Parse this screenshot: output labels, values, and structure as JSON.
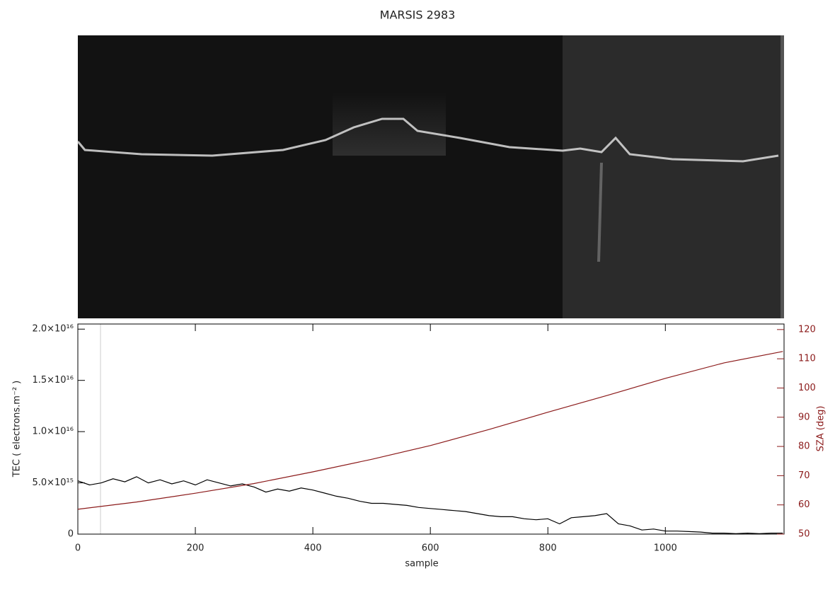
{
  "chart_data": {
    "type": "line",
    "title": "MARSIS 2983",
    "xlabel": "sample",
    "ylabel": "TEC ( electrons.m⁻² )",
    "y2label": "SZA (deg)",
    "xlim": [
      0,
      1202
    ],
    "xticks": [
      0,
      200,
      400,
      600,
      800,
      1000
    ],
    "ylim": [
      0,
      2.05e+16
    ],
    "yticks": [
      {
        "value": 0,
        "label": "0"
      },
      {
        "value": 5000000000000000.0,
        "label": "5.0×10¹⁵"
      },
      {
        "value": 1e+16,
        "label": "1.0×10¹⁶"
      },
      {
        "value": 1.5e+16,
        "label": "1.5×10¹⁶"
      },
      {
        "value": 2e+16,
        "label": "2.0×10¹⁶"
      }
    ],
    "y2lim": [
      50,
      121.9
    ],
    "y2ticks": [
      50,
      60,
      70,
      80,
      90,
      100,
      110,
      120
    ],
    "y2color": "#8b1a1a",
    "series": [
      {
        "color": "#000000",
        "x": [
          0,
          20,
          40,
          60,
          80,
          100,
          120,
          140,
          160,
          180,
          200,
          220,
          240,
          260,
          280,
          300,
          320,
          340,
          360,
          380,
          400,
          420,
          440,
          460,
          480,
          500,
          520,
          540,
          560,
          580,
          600,
          620,
          640,
          660,
          680,
          700,
          720,
          740,
          760,
          780,
          800,
          820,
          840,
          860,
          880,
          900,
          920,
          940,
          960,
          980,
          1000,
          1020,
          1040,
          1060,
          1080,
          1100,
          1120,
          1140,
          1160,
          1180,
          1200
        ],
        "values": [
          5200000000000000.0,
          4800000000000000.0,
          5000000000000000.0,
          5400000000000000.0,
          5100000000000000.0,
          5600000000000000.0,
          5000000000000000.0,
          5300000000000000.0,
          4900000000000000.0,
          5200000000000000.0,
          4800000000000000.0,
          5300000000000000.0,
          5000000000000000.0,
          4700000000000000.0,
          4900000000000000.0,
          4600000000000000.0,
          4100000000000000.0,
          4400000000000000.0,
          4200000000000000.0,
          4500000000000000.0,
          4300000000000000.0,
          4000000000000000.0,
          3700000000000000.0,
          3500000000000000.0,
          3200000000000000.0,
          3000000000000000.0,
          3000000000000000.0,
          2900000000000000.0,
          2800000000000000.0,
          2600000000000000.0,
          2500000000000000.0,
          2400000000000000.0,
          2300000000000000.0,
          2200000000000000.0,
          2000000000000000.0,
          1800000000000000.0,
          1700000000000000.0,
          1700000000000000.0,
          1500000000000000.0,
          1400000000000000.0,
          1500000000000000.0,
          1000000000000000.0,
          1600000000000000.0,
          1700000000000000.0,
          1800000000000000.0,
          2000000000000000.0,
          1000000000000000.0,
          800000000000000.0,
          400000000000000.0,
          500000000000000.0,
          300000000000000.0,
          300000000000000.0,
          250000000000000.0,
          200000000000000.0,
          100000000000000.0,
          100000000000000.0,
          50000000000000.0,
          100000000000000.0,
          50000000000000.0,
          100000000000000.0,
          100000000000000.0
        ]
      },
      {
        "color": "#8b1a1a",
        "axis": "y2",
        "x": [
          0,
          100,
          200,
          300,
          400,
          500,
          600,
          700,
          800,
          900,
          1000,
          1100,
          1200
        ],
        "values": [
          58.5,
          61,
          64,
          67.3,
          71.3,
          75.6,
          80.3,
          85.8,
          91.7,
          97.4,
          103.3,
          108.6,
          112.5
        ]
      }
    ]
  }
}
